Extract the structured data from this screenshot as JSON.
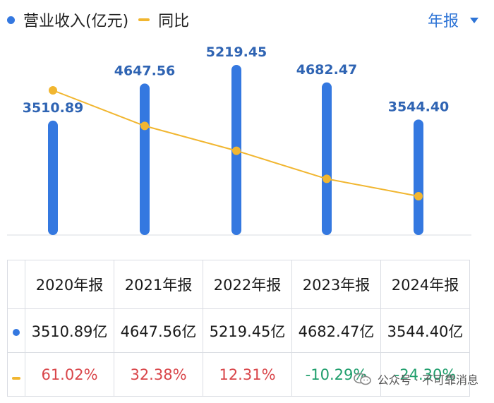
{
  "legend": {
    "series_bar": "营业收入(亿元)",
    "series_line": "同比"
  },
  "period_selector": "年报",
  "colors": {
    "bar": "#3478e0",
    "line": "#f1b630",
    "positive": "#d9464a",
    "negative": "#1f9e6c"
  },
  "chart_data": {
    "type": "bar",
    "categories": [
      "2020年报",
      "2021年报",
      "2022年报",
      "2023年报",
      "2024年报"
    ],
    "series": [
      {
        "name": "营业收入(亿元)",
        "type": "bar",
        "values": [
          3510.89,
          4647.56,
          5219.45,
          4682.47,
          3544.4
        ]
      },
      {
        "name": "同比",
        "type": "line",
        "values": [
          61.02,
          32.38,
          12.31,
          -10.29,
          -24.3
        ]
      }
    ],
    "bar_labels": [
      "3510.89",
      "4647.56",
      "5219.45",
      "4682.47",
      "3544.40"
    ]
  },
  "table": {
    "headers": [
      "2020年报",
      "2021年报",
      "2022年报",
      "2023年报",
      "2024年报"
    ],
    "revenue": [
      "3510.89亿",
      "4647.56亿",
      "5219.45亿",
      "4682.47亿",
      "3544.40亿"
    ],
    "yoy": [
      "61.02%",
      "32.38%",
      "12.31%",
      "-10.29%",
      "-24.30%"
    ]
  },
  "watermark": {
    "icon": "wechat-icon",
    "text": "公众号 · 不可靠消息"
  }
}
